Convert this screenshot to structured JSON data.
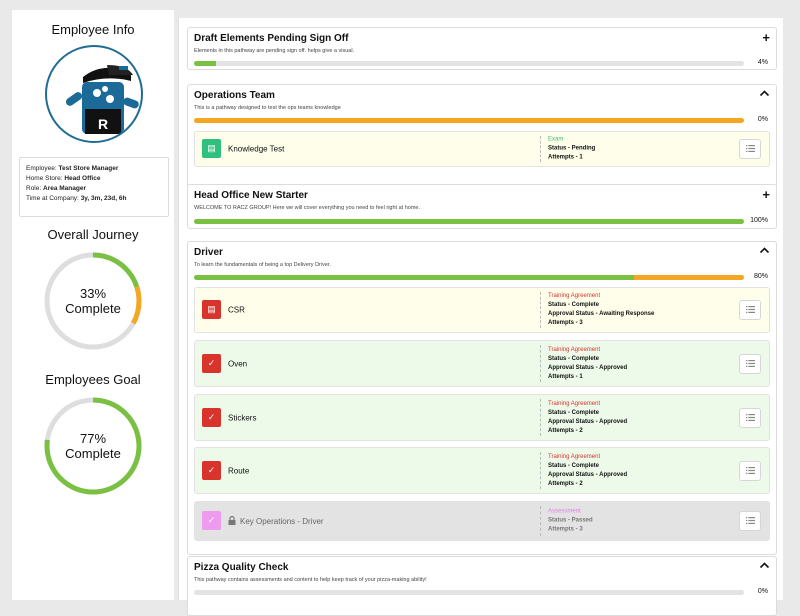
{
  "sidebar": {
    "employee_info_title": "Employee Info",
    "info": {
      "employee_label": "Employee:",
      "employee_value": "Test Store Manager",
      "home_store_label": "Home Store:",
      "home_store_value": "Head Office",
      "role_label": "Role:",
      "role_value": "Area Manager",
      "time_label": "Time at Company:",
      "time_value": "3y, 3m, 23d, 6h"
    },
    "overall_journey": {
      "title": "Overall Journey",
      "percent_text": "33%",
      "complete_text": "Complete",
      "segments": [
        {
          "fraction": 0.2,
          "color": "#7ac143"
        },
        {
          "fraction": 0.13,
          "color": "#f5a623"
        }
      ]
    },
    "employees_goal": {
      "title": "Employees Goal",
      "percent_text": "77%",
      "complete_text": "Complete",
      "segments": [
        {
          "fraction": 0.77,
          "color": "#7ac143"
        }
      ]
    }
  },
  "colors": {
    "green": "#7ac143",
    "orange": "#f5a623",
    "track": "#dedede"
  },
  "pathways": [
    {
      "title": "Draft Elements Pending Sign Off",
      "description": "Elements in this pathway are pending sign off. helps give a visual.",
      "toggle": "+",
      "percent_text": "4%",
      "progress": [
        {
          "fraction": 0.04,
          "color": "#7ac143"
        }
      ],
      "items": []
    },
    {
      "title": "Operations Team",
      "description": "This is a pathway designed to test the ops teams knowledge",
      "toggle": "^",
      "percent_text": "0%",
      "progress": [
        {
          "fraction": 1.0,
          "color": "#f5a623"
        }
      ],
      "items": [
        {
          "label": "Knowledge Test",
          "type": "Exam",
          "type_color": "#3dba73",
          "status": "Status - Pending",
          "approval": "",
          "attempts": "Attempts - 1",
          "bg": "yellow",
          "icon_color": "#2fc07d",
          "icon": "▤",
          "locked": false
        }
      ]
    },
    {
      "title": "Head Office New Starter",
      "description": "WELCOME TO RACZ GROUP! Here we will cover everything you need to feel right at home.",
      "toggle": "+",
      "percent_text": "100%",
      "progress": [
        {
          "fraction": 1.0,
          "color": "#7ac143"
        }
      ],
      "items": []
    },
    {
      "title": "Driver",
      "description": "To learn the fundamentals of being a top Delivery Driver.",
      "toggle": "^",
      "percent_text": "80%",
      "progress": [
        {
          "fraction": 0.8,
          "color": "#7ac143"
        },
        {
          "fraction": 0.2,
          "color": "#f5a623"
        }
      ],
      "items": [
        {
          "label": "CSR",
          "type": "Training Agreement",
          "type_color": "#d9342b",
          "status": "Status - Complete",
          "approval": "Approval Status - Awaiting Response",
          "attempts": "Attempts - 3",
          "bg": "yellow",
          "icon_color": "#d9342b",
          "icon": "▤",
          "locked": false
        },
        {
          "label": "Oven",
          "type": "Training Agreement",
          "type_color": "#d9342b",
          "status": "Status - Complete",
          "approval": "Approval Status - Approved",
          "attempts": "Attempts - 1",
          "bg": "green",
          "icon_color": "#d9342b",
          "icon": "✓",
          "locked": false
        },
        {
          "label": "Stickers",
          "type": "Training Agreement",
          "type_color": "#d9342b",
          "status": "Status - Complete",
          "approval": "Approval Status - Approved",
          "attempts": "Attempts - 2",
          "bg": "green",
          "icon_color": "#d9342b",
          "icon": "✓",
          "locked": false
        },
        {
          "label": "Route",
          "type": "Training Agreement",
          "type_color": "#d9342b",
          "status": "Status - Complete",
          "approval": "Approval Status - Approved",
          "attempts": "Attempts - 2",
          "bg": "green",
          "icon_color": "#d9342b",
          "icon": "✓",
          "locked": false
        },
        {
          "label": "Key Operations - Driver",
          "type": "Assessment",
          "type_color": "#e07ee0",
          "status": "Status - Passed",
          "approval": "",
          "attempts": "Attempts - 3",
          "bg": "grey",
          "icon_color": "#ee9aee",
          "icon": "✓",
          "locked": true
        }
      ]
    },
    {
      "title": "Pizza Quality Check",
      "description": "This pathway contains assessments and content to help keep track of your pizza-making ability!",
      "toggle": "^",
      "percent_text": "0%",
      "progress": [
        {
          "fraction": 0.0,
          "color": "#7ac143"
        }
      ],
      "items": []
    }
  ]
}
